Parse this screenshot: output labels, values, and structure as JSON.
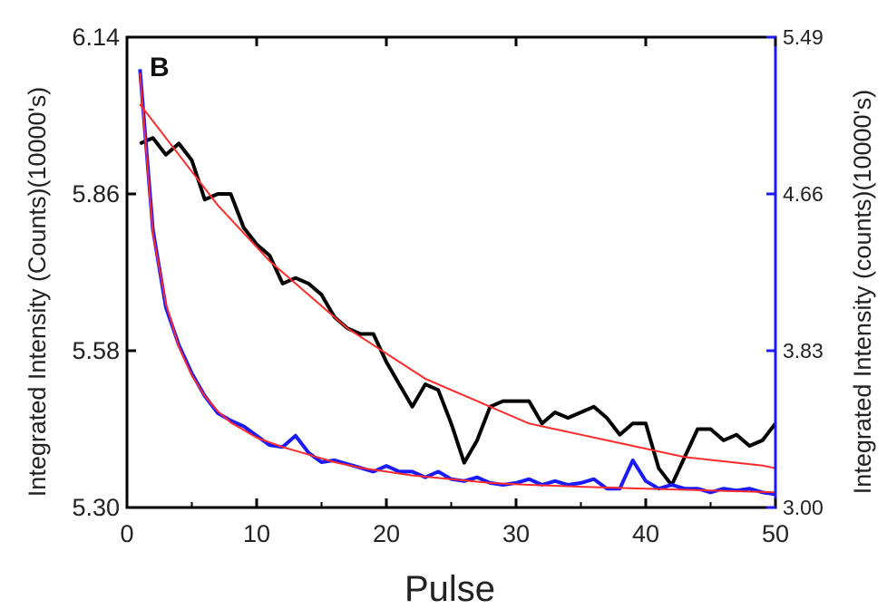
{
  "chart_data": {
    "type": "line",
    "panel_label": "B",
    "xlabel": "Pulse",
    "ylabel_left": "Integrated Intensity (Counts)(10000's)",
    "ylabel_right": "Integrated Intensity (counts)(10000's)",
    "xlim": [
      0,
      50
    ],
    "ylim_left": [
      5.3,
      6.14
    ],
    "ylim_right": [
      3.0,
      5.49
    ],
    "x_ticks": [
      0,
      10,
      20,
      30,
      40,
      50
    ],
    "y_ticks_left": [
      "5.30",
      "5.58",
      "5.86",
      "6.14"
    ],
    "y_ticks_right": [
      "3.00",
      "3.83",
      "4.66",
      "5.49"
    ],
    "grid": false,
    "colors": {
      "left_series": "#000000",
      "right_series": "#1a1aff",
      "fit": "#ff2a2a",
      "right_axis": "#1a1aff"
    },
    "series": [
      {
        "axis": "left",
        "color": "#000000",
        "x": [
          1,
          2,
          3,
          4,
          5,
          6,
          7,
          8,
          9,
          10,
          11,
          12,
          13,
          14,
          15,
          16,
          17,
          18,
          19,
          20,
          21,
          22,
          23,
          24,
          25,
          26,
          27,
          28,
          29,
          30,
          31,
          32,
          33,
          34,
          35,
          36,
          37,
          38,
          39,
          40,
          41,
          42,
          43,
          44,
          45,
          46,
          47,
          48,
          49,
          50
        ],
        "y": [
          5.95,
          5.96,
          5.93,
          5.95,
          5.92,
          5.85,
          5.86,
          5.86,
          5.8,
          5.77,
          5.75,
          5.7,
          5.71,
          5.7,
          5.68,
          5.64,
          5.62,
          5.61,
          5.61,
          5.56,
          5.52,
          5.48,
          5.52,
          5.51,
          5.45,
          5.38,
          5.42,
          5.48,
          5.49,
          5.49,
          5.49,
          5.45,
          5.47,
          5.46,
          5.47,
          5.48,
          5.46,
          5.43,
          5.45,
          5.45,
          5.37,
          5.34,
          5.39,
          5.44,
          5.44,
          5.42,
          5.43,
          5.41,
          5.42,
          5.45
        ]
      },
      {
        "axis": "right",
        "color": "#1a1aff",
        "x": [
          1,
          2,
          3,
          4,
          5,
          6,
          7,
          8,
          9,
          10,
          11,
          12,
          13,
          14,
          15,
          16,
          17,
          18,
          19,
          20,
          21,
          22,
          23,
          24,
          25,
          26,
          27,
          28,
          29,
          30,
          31,
          32,
          33,
          34,
          35,
          36,
          37,
          38,
          39,
          40,
          41,
          42,
          43,
          44,
          45,
          46,
          47,
          48,
          49,
          50
        ],
        "y": [
          5.32,
          4.47,
          4.06,
          3.86,
          3.71,
          3.59,
          3.5,
          3.46,
          3.43,
          3.38,
          3.33,
          3.32,
          3.38,
          3.29,
          3.24,
          3.25,
          3.23,
          3.21,
          3.19,
          3.22,
          3.19,
          3.19,
          3.16,
          3.19,
          3.15,
          3.14,
          3.16,
          3.13,
          3.12,
          3.13,
          3.15,
          3.12,
          3.14,
          3.12,
          3.13,
          3.15,
          3.1,
          3.1,
          3.25,
          3.14,
          3.1,
          3.12,
          3.1,
          3.1,
          3.08,
          3.1,
          3.09,
          3.1,
          3.08,
          3.07
        ]
      },
      {
        "axis": "left",
        "color": "#ff2a2a",
        "role": "fit",
        "x": [
          1,
          3,
          5,
          7,
          9,
          11,
          13,
          15,
          17,
          19,
          21,
          23,
          25,
          27,
          29,
          31,
          33,
          35,
          37,
          39,
          41,
          43,
          45,
          47,
          49,
          50
        ],
        "y": [
          6.02,
          5.96,
          5.9,
          5.84,
          5.79,
          5.74,
          5.7,
          5.66,
          5.62,
          5.59,
          5.56,
          5.53,
          5.51,
          5.49,
          5.47,
          5.45,
          5.44,
          5.43,
          5.42,
          5.41,
          5.4,
          5.39,
          5.385,
          5.38,
          5.375,
          5.37
        ]
      },
      {
        "axis": "right",
        "color": "#ff2a2a",
        "role": "fit",
        "x": [
          1,
          2,
          3,
          4,
          5,
          6,
          7,
          8,
          9,
          10,
          12,
          14,
          16,
          18,
          20,
          22,
          25,
          28,
          31,
          35,
          40,
          45,
          50
        ],
        "y": [
          5.3,
          4.45,
          4.08,
          3.85,
          3.7,
          3.59,
          3.51,
          3.45,
          3.41,
          3.37,
          3.32,
          3.28,
          3.24,
          3.21,
          3.19,
          3.17,
          3.15,
          3.13,
          3.12,
          3.11,
          3.1,
          3.09,
          3.08
        ]
      }
    ]
  }
}
